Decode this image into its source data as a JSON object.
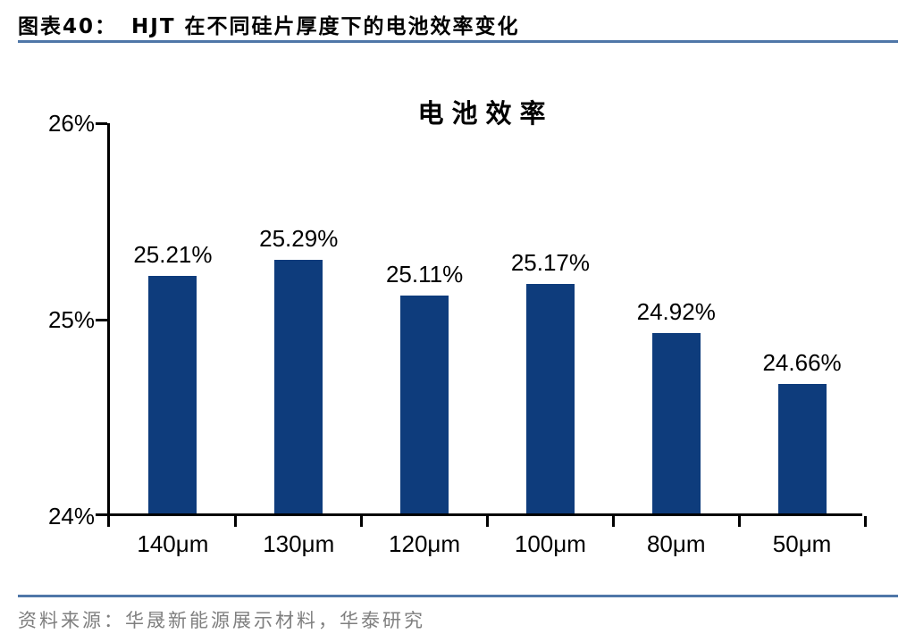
{
  "header": {
    "figure_label": "图表40：",
    "title": "HJT 在不同硅片厚度下的电池效率变化"
  },
  "chart_data": {
    "type": "bar",
    "title": "电池效率",
    "categories": [
      "140μm",
      "130μm",
      "120μm",
      "100μm",
      "80μm",
      "50μm"
    ],
    "values": [
      25.21,
      25.29,
      25.11,
      25.17,
      24.92,
      24.66
    ],
    "value_labels": [
      "25.21%",
      "25.29%",
      "25.11%",
      "25.17%",
      "24.92%",
      "24.66%"
    ],
    "xlabel": "",
    "ylabel": "",
    "ylim": [
      24,
      26
    ],
    "yticks": [
      {
        "value": 26,
        "label": "26%"
      },
      {
        "value": 25,
        "label": "25%"
      },
      {
        "value": 24,
        "label": "24%"
      }
    ],
    "grid": false,
    "legend": false
  },
  "footer": {
    "source": "资料来源：华晟新能源展示材料，华泰研究"
  },
  "colors": {
    "bar": "#0e3c7c",
    "rule_blue": "#4f77a8",
    "axis": "#000000",
    "footer_text": "#7f7f7f"
  }
}
